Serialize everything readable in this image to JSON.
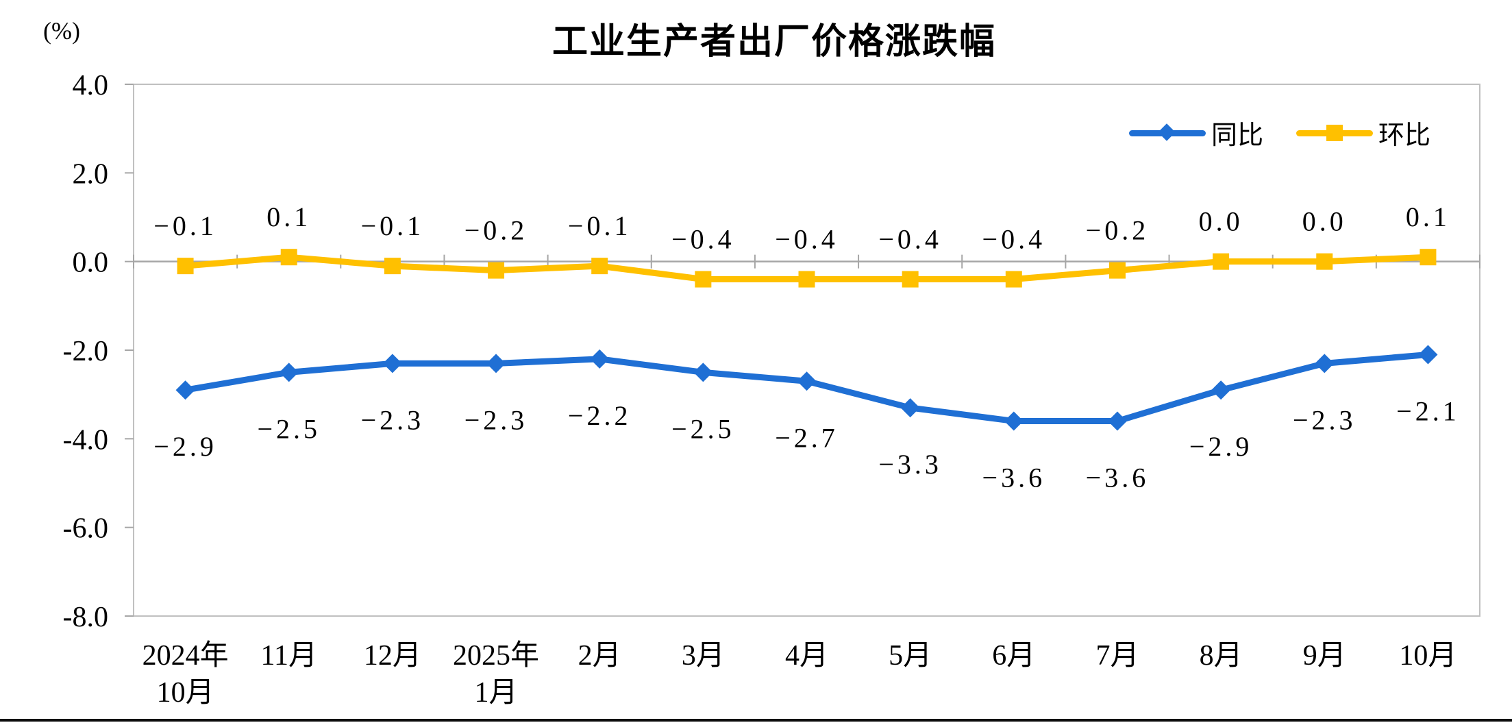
{
  "page": {
    "title": "工业生产者出厂价格涨跌幅",
    "unit_label": "(%)"
  },
  "colors": {
    "series_yoy": "#1F6FD4",
    "series_mom": "#FFC000",
    "plot_border": "#C0C0C0",
    "category_axis": "#A6A6A6",
    "text": "#000000",
    "bottom_rule": "#0D0D0D"
  },
  "chart_data": {
    "type": "line",
    "title": "工业生产者出厂价格涨跌幅",
    "ylabel": "(%)",
    "ylim": [
      -8.0,
      4.0
    ],
    "y_step": 2.0,
    "grid": false,
    "legend_position": "top-right",
    "y_tick_labels": [
      "4.0",
      "2.0",
      "0.0",
      "-2.0",
      "-4.0",
      "-6.0",
      "-8.0"
    ],
    "categories": [
      [
        "2024年",
        "10月"
      ],
      [
        "11月"
      ],
      [
        "12月"
      ],
      [
        "2025年",
        "1月"
      ],
      [
        "2月"
      ],
      [
        "3月"
      ],
      [
        "4月"
      ],
      [
        "5月"
      ],
      [
        "6月"
      ],
      [
        "7月"
      ],
      [
        "8月"
      ],
      [
        "9月"
      ],
      [
        "10月"
      ]
    ],
    "series": [
      {
        "name": "同比",
        "color": "#1F6FD4",
        "marker": "diamond",
        "label_position": "below",
        "values": [
          -2.9,
          -2.5,
          -2.3,
          -2.3,
          -2.2,
          -2.5,
          -2.7,
          -3.3,
          -3.6,
          -3.6,
          -2.9,
          -2.3,
          -2.1
        ],
        "labels": [
          "−2.9",
          "−2.5",
          "−2.3",
          "−2.3",
          "−2.2",
          "−2.5",
          "−2.7",
          "−3.3",
          "−3.6",
          "−3.6",
          "−2.9",
          "−2.3",
          "−2.1"
        ]
      },
      {
        "name": "环比",
        "color": "#FFC000",
        "marker": "square",
        "label_position": "above",
        "values": [
          -0.1,
          0.1,
          -0.1,
          -0.2,
          -0.1,
          -0.4,
          -0.4,
          -0.4,
          -0.4,
          -0.2,
          0.0,
          0.0,
          0.1
        ],
        "labels": [
          "−0.1",
          "0.1",
          "−0.1",
          "−0.2",
          "−0.1",
          "−0.4",
          "−0.4",
          "−0.4",
          "−0.4",
          "−0.2",
          "0.0",
          "0.0",
          "0.1"
        ]
      }
    ]
  }
}
